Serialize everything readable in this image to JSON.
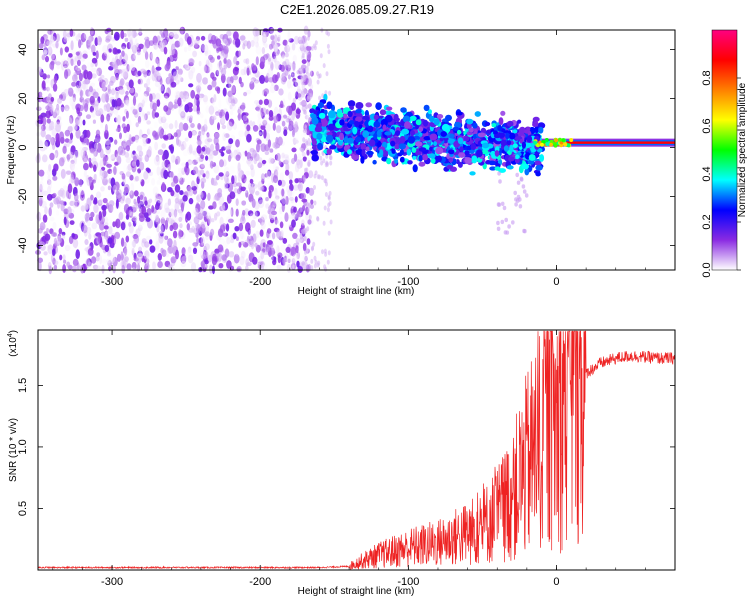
{
  "title": "C2E1.2026.085.09.27.R19",
  "chart_data": [
    {
      "type": "heatmap",
      "name": "spectrogram",
      "xlabel": "Height of straight line (km)",
      "ylabel": "Frequency (Hz)",
      "xlim": [
        -350,
        80
      ],
      "ylim": [
        -50,
        48
      ],
      "xticks": [
        -300,
        -200,
        -100,
        0
      ],
      "xtick_labels": [
        "-300",
        "-200",
        "-100",
        "0"
      ],
      "yticks": [
        -40,
        -20,
        0,
        20,
        40
      ],
      "ytick_labels": [
        "-40",
        "-20",
        "0",
        "20",
        "40"
      ],
      "colorbar": {
        "label": "Normalized spectral amplitude",
        "range": [
          0,
          1
        ],
        "ticks": [
          0.0,
          0.2,
          0.4,
          0.6,
          0.8
        ],
        "tick_labels": [
          "0.0",
          "0.2",
          "0.4",
          "0.6",
          "0.8"
        ],
        "colors": [
          "#ffffff",
          "#8a2be2",
          "#0000ff",
          "#00ffff",
          "#00ff00",
          "#ffff00",
          "#ff8000",
          "#ff0000",
          "#ff0080"
        ]
      },
      "regions": [
        {
          "x_range": [
            -350,
            -165
          ],
          "freq_range": [
            -50,
            48
          ],
          "amplitude": [
            0.0,
            0.15
          ]
        },
        {
          "x_range": [
            -165,
            -10
          ],
          "freq_center_start": 8,
          "freq_center_end": 0,
          "freq_spread": 8,
          "amplitude": [
            0.1,
            0.4
          ]
        },
        {
          "x_range": [
            -10,
            80
          ],
          "freq_center": 2,
          "freq_spread": 1,
          "amplitude": [
            0.6,
            0.9
          ]
        }
      ]
    },
    {
      "type": "line",
      "name": "snr",
      "xlabel": "Height of straight line (km)",
      "ylabel": "SNR (10 * v/v)",
      "y_multiplier_label": "(x10",
      "y_multiplier_exp": "4",
      "y_multiplier_close": ")",
      "xlim": [
        -350,
        80
      ],
      "ylim": [
        0,
        1.95
      ],
      "xticks": [
        -300,
        -200,
        -100,
        0
      ],
      "xtick_labels": [
        "-300",
        "-200",
        "-100",
        "0"
      ],
      "yticks": [
        0.5,
        1.0,
        1.5
      ],
      "ytick_labels": [
        "0.5",
        "1.0",
        "1.5"
      ],
      "color": "#ee2222",
      "series": {
        "name": "SNR",
        "x": [
          -350,
          -300,
          -250,
          -200,
          -160,
          -140,
          -130,
          -120,
          -100,
          -80,
          -60,
          -50,
          -40,
          -30,
          -20,
          -10,
          -5,
          0,
          5,
          10,
          15,
          20,
          30,
          40,
          50,
          60,
          70,
          80
        ],
        "y": [
          0.02,
          0.02,
          0.02,
          0.02,
          0.02,
          0.03,
          0.08,
          0.12,
          0.18,
          0.22,
          0.3,
          0.35,
          0.45,
          0.6,
          0.85,
          1.1,
          1.3,
          1.2,
          1.4,
          1.5,
          1.55,
          1.6,
          1.68,
          1.72,
          1.74,
          1.73,
          1.72,
          1.72
        ]
      }
    }
  ]
}
